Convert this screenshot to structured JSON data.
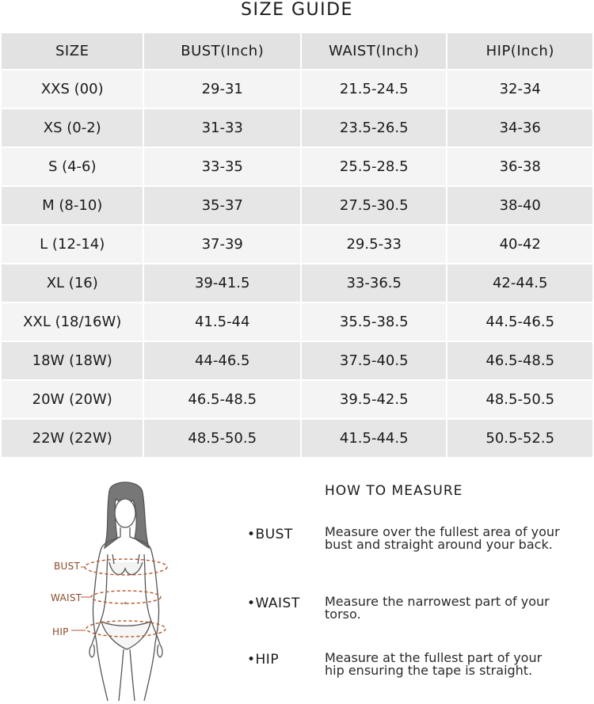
{
  "title": "SIZE GUIDE",
  "table": {
    "headers": [
      "SIZE",
      "BUST(Inch)",
      "WAIST(Inch)",
      "HIP(Inch)"
    ],
    "rows": [
      [
        "XXS (00)",
        "29-31",
        "21.5-24.5",
        "32-34"
      ],
      [
        "XS (0-2)",
        "31-33",
        "23.5-26.5",
        "34-36"
      ],
      [
        "S (4-6)",
        "33-35",
        "25.5-28.5",
        "36-38"
      ],
      [
        "M (8-10)",
        "35-37",
        "27.5-30.5",
        "38-40"
      ],
      [
        "L (12-14)",
        "37-39",
        "29.5-33",
        "40-42"
      ],
      [
        "XL (16)",
        "39-41.5",
        "33-36.5",
        "42-44.5"
      ],
      [
        "XXL (18/16W)",
        "41.5-44",
        "35.5-38.5",
        "44.5-46.5"
      ],
      [
        "18W (18W)",
        "44-46.5",
        "37.5-40.5",
        "46.5-48.5"
      ],
      [
        "20W (20W)",
        "46.5-48.5",
        "39.5-42.5",
        "48.5-50.5"
      ],
      [
        "22W (22W)",
        "48.5-50.5",
        "41.5-44.5",
        "50.5-52.5"
      ]
    ]
  },
  "figure": {
    "labels": {
      "bust": "BUST",
      "waist": "WAIST",
      "hip": "HIP"
    },
    "accent_color": "#b5572c"
  },
  "measure": {
    "title": "HOW TO MEASURE",
    "items": [
      {
        "label": "•BUST",
        "desc": "Measure over the fullest area of your bust and straight around your back."
      },
      {
        "label": "•WAIST",
        "desc": "Measure the narrowest part of your torso."
      },
      {
        "label": "•HIP",
        "desc": "Measure at the fullest part of your hip ensuring the tape is straight."
      }
    ]
  }
}
